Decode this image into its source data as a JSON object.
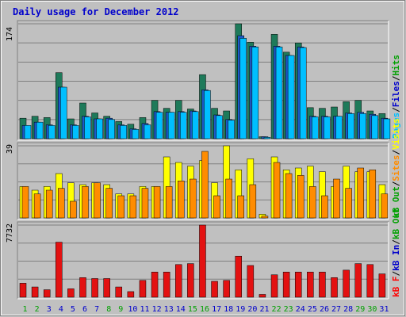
{
  "chart_data": {
    "type": "bar",
    "title": "Daily usage for December 2012",
    "x": [
      "1",
      "2",
      "3",
      "4",
      "5",
      "6",
      "7",
      "8",
      "9",
      "10",
      "11",
      "12",
      "13",
      "14",
      "15",
      "16",
      "17",
      "18",
      "19",
      "20",
      "21",
      "22",
      "23",
      "24",
      "25",
      "26",
      "27",
      "28",
      "29",
      "30",
      "31"
    ],
    "weekend_days": [
      "1",
      "2",
      "8",
      "9",
      "15",
      "16",
      "22",
      "23",
      "29",
      "30"
    ],
    "panels": [
      {
        "name": "hits-files-pages",
        "ymax_label": "174",
        "ymax": 174,
        "legend": [
          "Pages",
          "Files",
          "Hits"
        ],
        "legend_separator": "/",
        "series": [
          {
            "name": "Hits",
            "color": "#1e7a5a",
            "values": [
              31,
              34,
              32,
              100,
              30,
              54,
              39,
              34,
              26,
              22,
              32,
              58,
              46,
              58,
              45,
              97,
              46,
              42,
              174,
              146,
              3,
              158,
              131,
              145,
              47,
              46,
              48,
              56,
              58,
              42,
              38
            ]
          },
          {
            "name": "Files",
            "color": "#1c5ac8",
            "values": [
              20,
              25,
              21,
              78,
              21,
              34,
              30,
              31,
              21,
              15,
              23,
              41,
              40,
              41,
              42,
              74,
              36,
              29,
              156,
              140,
              3,
              140,
              126,
              139,
              34,
              34,
              34,
              39,
              40,
              37,
              31
            ]
          },
          {
            "name": "Pages",
            "color": "#00bfff",
            "values": [
              20,
              25,
              20,
              78,
              20,
              33,
              30,
              29,
              20,
              14,
              21,
              40,
              40,
              40,
              41,
              73,
              35,
              28,
              152,
              139,
              2,
              139,
              126,
              138,
              33,
              33,
              34,
              38,
              38,
              35,
              30
            ]
          }
        ]
      },
      {
        "name": "visits-sites",
        "ymax_label": "39",
        "ymax": 39,
        "legend": [
          "kB Out",
          "Sites",
          "Visits"
        ],
        "legend_separator": "/",
        "series": [
          {
            "name": "Visits",
            "color": "#ffff00",
            "values": [
              17,
              15,
              17,
              24,
              19,
              18,
              19,
              18,
              13,
              13,
              17,
              17,
              33,
              30,
              28,
              31,
              19,
              39,
              26,
              32,
              2,
              33,
              26,
              27,
              28,
              25,
              17,
              28,
              25,
              25,
              18
            ]
          },
          {
            "name": "Sites",
            "color": "#ff8c00",
            "values": [
              17,
              13,
              15,
              16,
              9,
              17,
              19,
              16,
              12,
              12,
              16,
              17,
              17,
              20,
              21,
              36,
              12,
              21,
              12,
              18,
              1,
              30,
              24,
              23,
              17,
              12,
              21,
              16,
              27,
              26,
              13
            ]
          }
        ]
      },
      {
        "name": "kbytes",
        "ymax_label": "7732",
        "ymax": 7732,
        "legend": [
          "kB F",
          "kB In",
          "kB Out"
        ],
        "legend_separator": "/",
        "series": [
          {
            "name": "kB F",
            "color": "#e31111",
            "values": [
              1500,
              1100,
              800,
              5900,
              900,
              2100,
              2000,
              2000,
              1100,
              600,
              1800,
              2700,
              2700,
              3500,
              3600,
              7732,
              1700,
              1800,
              4400,
              3400,
              300,
              2400,
              2700,
              2700,
              2700,
              2700,
              2100,
              2900,
              3600,
              3500,
              2500
            ]
          }
        ]
      }
    ],
    "colors": {
      "background": "#c0c0c0",
      "frame": "#ffffff",
      "title": "#0000cc",
      "weekday_label": "#0000cc",
      "weekend_label": "#00a000",
      "legend_pages": "#00bfff",
      "legend_files": "#0000cc",
      "legend_hits": "#00a000",
      "legend_visits": "#ffff00",
      "legend_sites": "#ff8c00",
      "legend_kbout": "#00a000",
      "legend_kbin": "#0000cc",
      "legend_kbf": "#ff0000",
      "grid": "#808080"
    }
  }
}
